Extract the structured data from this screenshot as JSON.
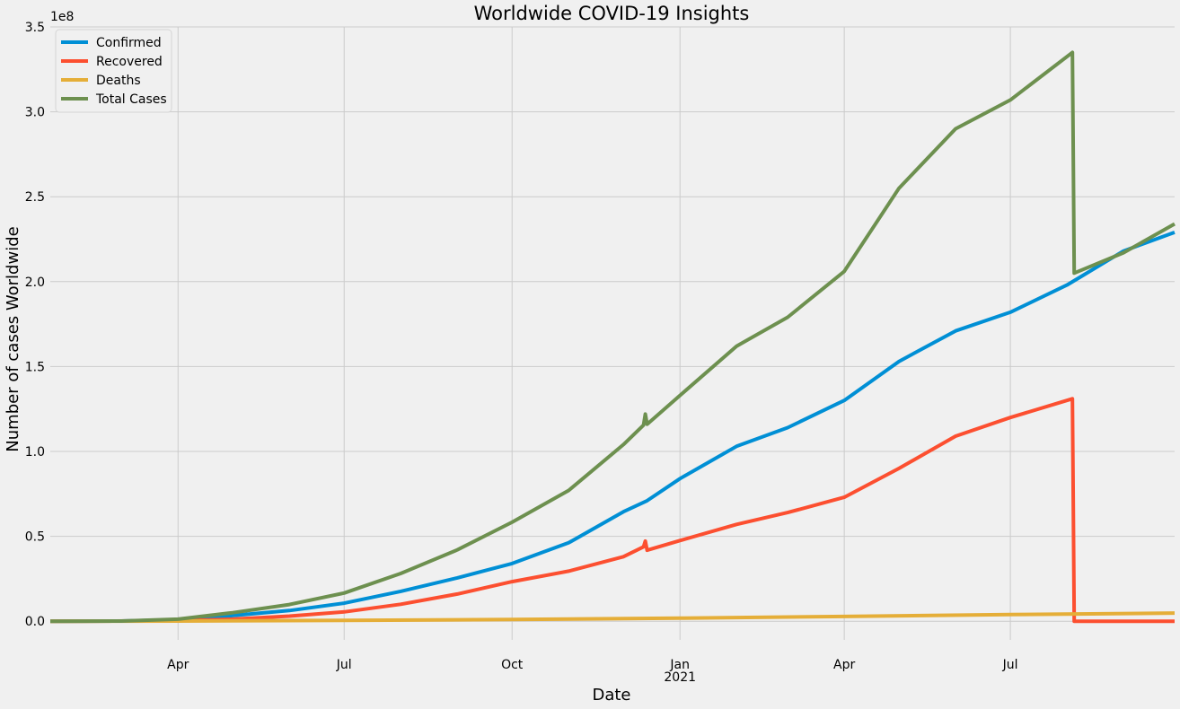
{
  "chart_data": {
    "type": "line",
    "title": "Worldwide COVID-19 Insights",
    "xlabel": "Date",
    "ylabel": "Number of cases Worldwide",
    "y_offset_label": "1e8",
    "ylim": [
      -0.11,
      3.5
    ],
    "xlim": [
      "2020-01-22",
      "2021-09-29"
    ],
    "grid": true,
    "legend_position": "top-left",
    "x_ticks": [
      {
        "date": "2020-04-01",
        "label": "Apr",
        "sublabel": ""
      },
      {
        "date": "2020-07-01",
        "label": "Jul",
        "sublabel": ""
      },
      {
        "date": "2020-10-01",
        "label": "Oct",
        "sublabel": ""
      },
      {
        "date": "2021-01-01",
        "label": "Jan",
        "sublabel": "2021"
      },
      {
        "date": "2021-04-01",
        "label": "Apr",
        "sublabel": ""
      },
      {
        "date": "2021-07-01",
        "label": "Jul",
        "sublabel": ""
      }
    ],
    "y_ticks": [
      {
        "value": 0.0,
        "label": "0.0"
      },
      {
        "value": 0.5,
        "label": "0.5"
      },
      {
        "value": 1.0,
        "label": "1.0"
      },
      {
        "value": 1.5,
        "label": "1.5"
      },
      {
        "value": 2.0,
        "label": "2.0"
      },
      {
        "value": 2.5,
        "label": "2.5"
      },
      {
        "value": 3.0,
        "label": "3.0"
      },
      {
        "value": 3.5,
        "label": "3.5"
      }
    ],
    "series": [
      {
        "name": "Confirmed",
        "color": "#008fd5",
        "points": [
          [
            "2020-01-22",
            0.0
          ],
          [
            "2020-03-01",
            0.001
          ],
          [
            "2020-04-01",
            0.009
          ],
          [
            "2020-05-01",
            0.033
          ],
          [
            "2020-06-01",
            0.063
          ],
          [
            "2020-07-01",
            0.106
          ],
          [
            "2020-08-01",
            0.176
          ],
          [
            "2020-09-01",
            0.255
          ],
          [
            "2020-10-01",
            0.34
          ],
          [
            "2020-11-01",
            0.462
          ],
          [
            "2020-12-01",
            0.645
          ],
          [
            "2020-12-14",
            0.71
          ],
          [
            "2021-01-01",
            0.84
          ],
          [
            "2021-02-01",
            1.03
          ],
          [
            "2021-03-01",
            1.14
          ],
          [
            "2021-04-01",
            1.3
          ],
          [
            "2021-05-01",
            1.53
          ],
          [
            "2021-06-01",
            1.71
          ],
          [
            "2021-07-01",
            1.82
          ],
          [
            "2021-08-01",
            1.98
          ],
          [
            "2021-09-01",
            2.18
          ],
          [
            "2021-09-29",
            2.29
          ]
        ]
      },
      {
        "name": "Recovered",
        "color": "#fc4f30",
        "points": [
          [
            "2020-01-22",
            0.0
          ],
          [
            "2020-04-01",
            0.002
          ],
          [
            "2020-05-01",
            0.012
          ],
          [
            "2020-06-01",
            0.03
          ],
          [
            "2020-07-01",
            0.055
          ],
          [
            "2020-08-01",
            0.1
          ],
          [
            "2020-09-01",
            0.16
          ],
          [
            "2020-10-01",
            0.233
          ],
          [
            "2020-11-01",
            0.295
          ],
          [
            "2020-12-01",
            0.38
          ],
          [
            "2020-12-12",
            0.438
          ],
          [
            "2020-12-13",
            0.472
          ],
          [
            "2020-12-14",
            0.418
          ],
          [
            "2021-01-01",
            0.475
          ],
          [
            "2021-02-01",
            0.57
          ],
          [
            "2021-03-01",
            0.64
          ],
          [
            "2021-04-01",
            0.73
          ],
          [
            "2021-05-01",
            0.9
          ],
          [
            "2021-06-01",
            1.09
          ],
          [
            "2021-07-01",
            1.2
          ],
          [
            "2021-08-04",
            1.31
          ],
          [
            "2021-08-05",
            0.0
          ],
          [
            "2021-09-29",
            0.0
          ]
        ]
      },
      {
        "name": "Deaths",
        "color": "#e5ae38",
        "points": [
          [
            "2020-01-22",
            0.0
          ],
          [
            "2020-04-01",
            0.001
          ],
          [
            "2020-07-01",
            0.005
          ],
          [
            "2020-10-01",
            0.01
          ],
          [
            "2021-01-01",
            0.018
          ],
          [
            "2021-04-01",
            0.028
          ],
          [
            "2021-07-01",
            0.039
          ],
          [
            "2021-09-29",
            0.048
          ]
        ]
      },
      {
        "name": "Total Cases",
        "color": "#6d904f",
        "points": [
          [
            "2020-01-22",
            0.0
          ],
          [
            "2020-03-01",
            0.001
          ],
          [
            "2020-04-01",
            0.012
          ],
          [
            "2020-05-01",
            0.05
          ],
          [
            "2020-06-01",
            0.098
          ],
          [
            "2020-07-01",
            0.166
          ],
          [
            "2020-08-01",
            0.281
          ],
          [
            "2020-09-01",
            0.42
          ],
          [
            "2020-10-01",
            0.583
          ],
          [
            "2020-11-01",
            0.77
          ],
          [
            "2020-12-01",
            1.04
          ],
          [
            "2020-12-12",
            1.155
          ],
          [
            "2020-12-13",
            1.22
          ],
          [
            "2020-12-14",
            1.16
          ],
          [
            "2021-01-01",
            1.33
          ],
          [
            "2021-02-01",
            1.62
          ],
          [
            "2021-03-01",
            1.79
          ],
          [
            "2021-04-01",
            2.06
          ],
          [
            "2021-05-01",
            2.55
          ],
          [
            "2021-06-01",
            2.9
          ],
          [
            "2021-07-01",
            3.07
          ],
          [
            "2021-08-04",
            3.35
          ],
          [
            "2021-08-05",
            2.05
          ],
          [
            "2021-09-01",
            2.17
          ],
          [
            "2021-09-29",
            2.34
          ]
        ]
      }
    ]
  }
}
